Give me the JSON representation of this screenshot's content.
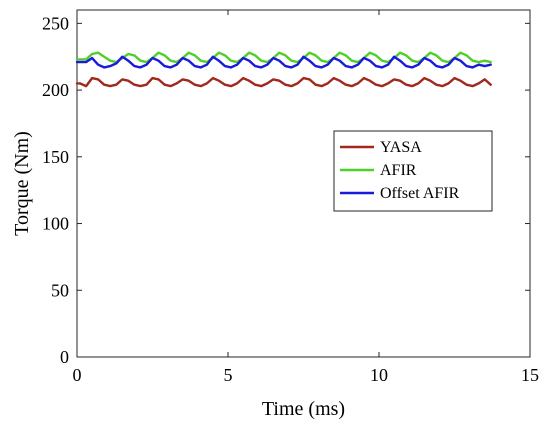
{
  "chart_data": {
    "type": "line",
    "title": "",
    "xlabel": "Time (ms)",
    "ylabel": "Torque (Nm)",
    "xlim": [
      0,
      15
    ],
    "ylim": [
      0,
      260
    ],
    "xticks": [
      0,
      5,
      10,
      15
    ],
    "yticks": [
      0,
      50,
      100,
      150,
      200,
      250
    ],
    "grid": false,
    "legend_position": "right-middle",
    "series": [
      {
        "name": "YASA",
        "color": "#a0281c",
        "x": [
          0.0,
          0.1,
          0.3,
          0.5,
          0.7,
          0.9,
          1.1,
          1.3,
          1.5,
          1.7,
          1.9,
          2.1,
          2.3,
          2.5,
          2.7,
          2.9,
          3.1,
          3.3,
          3.5,
          3.7,
          3.9,
          4.1,
          4.3,
          4.5,
          4.7,
          4.9,
          5.1,
          5.3,
          5.5,
          5.7,
          5.9,
          6.1,
          6.3,
          6.5,
          6.7,
          6.9,
          7.1,
          7.3,
          7.5,
          7.7,
          7.9,
          8.1,
          8.3,
          8.5,
          8.7,
          8.9,
          9.1,
          9.3,
          9.5,
          9.7,
          9.9,
          10.1,
          10.3,
          10.5,
          10.7,
          10.9,
          11.1,
          11.3,
          11.5,
          11.7,
          11.9,
          12.1,
          12.3,
          12.5,
          12.7,
          12.9,
          13.1,
          13.3,
          13.5,
          13.7
        ],
        "y": [
          205,
          205,
          203,
          209,
          208,
          204,
          203,
          204,
          208,
          207,
          204,
          203,
          204,
          209,
          208,
          204,
          203,
          205,
          208,
          207,
          204,
          203,
          205,
          209,
          207,
          204,
          203,
          205,
          209,
          207,
          204,
          203,
          205,
          208,
          207,
          204,
          203,
          205,
          209,
          208,
          204,
          203,
          205,
          209,
          207,
          204,
          203,
          205,
          209,
          207,
          204,
          203,
          205,
          208,
          207,
          204,
          203,
          205,
          209,
          207,
          204,
          203,
          205,
          209,
          207,
          204,
          203,
          205,
          208,
          204
        ]
      },
      {
        "name": "AFIR",
        "color": "#4fcf2a",
        "x": [
          0.0,
          0.1,
          0.3,
          0.5,
          0.7,
          0.9,
          1.1,
          1.3,
          1.5,
          1.7,
          1.9,
          2.1,
          2.3,
          2.5,
          2.7,
          2.9,
          3.1,
          3.3,
          3.5,
          3.7,
          3.9,
          4.1,
          4.3,
          4.5,
          4.7,
          4.9,
          5.1,
          5.3,
          5.5,
          5.7,
          5.9,
          6.1,
          6.3,
          6.5,
          6.7,
          6.9,
          7.1,
          7.3,
          7.5,
          7.7,
          7.9,
          8.1,
          8.3,
          8.5,
          8.7,
          8.9,
          9.1,
          9.3,
          9.5,
          9.7,
          9.9,
          10.1,
          10.3,
          10.5,
          10.7,
          10.9,
          11.1,
          11.3,
          11.5,
          11.7,
          11.9,
          12.1,
          12.3,
          12.5,
          12.7,
          12.9,
          13.1,
          13.3,
          13.5,
          13.7
        ],
        "y": [
          223,
          223,
          223,
          227,
          228,
          225,
          222,
          221,
          224,
          227,
          226,
          222,
          221,
          224,
          228,
          226,
          222,
          221,
          224,
          228,
          226,
          222,
          221,
          224,
          228,
          226,
          222,
          221,
          224,
          228,
          226,
          222,
          221,
          224,
          228,
          226,
          222,
          221,
          224,
          228,
          226,
          222,
          221,
          224,
          228,
          226,
          222,
          221,
          224,
          228,
          226,
          222,
          221,
          224,
          228,
          226,
          222,
          221,
          224,
          228,
          226,
          222,
          221,
          224,
          228,
          226,
          222,
          221,
          222,
          221
        ]
      },
      {
        "name": "Offset AFIR",
        "color": "#1a1adc",
        "x": [
          0.0,
          0.1,
          0.3,
          0.5,
          0.7,
          0.9,
          1.1,
          1.3,
          1.5,
          1.7,
          1.9,
          2.1,
          2.3,
          2.5,
          2.7,
          2.9,
          3.1,
          3.3,
          3.5,
          3.7,
          3.9,
          4.1,
          4.3,
          4.5,
          4.7,
          4.9,
          5.1,
          5.3,
          5.5,
          5.7,
          5.9,
          6.1,
          6.3,
          6.5,
          6.7,
          6.9,
          7.1,
          7.3,
          7.5,
          7.7,
          7.9,
          8.1,
          8.3,
          8.5,
          8.7,
          8.9,
          9.1,
          9.3,
          9.5,
          9.7,
          9.9,
          10.1,
          10.3,
          10.5,
          10.7,
          10.9,
          11.1,
          11.3,
          11.5,
          11.7,
          11.9,
          12.1,
          12.3,
          12.5,
          12.7,
          12.9,
          13.1,
          13.3,
          13.5,
          13.7
        ],
        "y": [
          221,
          221,
          221,
          224,
          219,
          217,
          218,
          220,
          225,
          222,
          218,
          217,
          219,
          224,
          222,
          218,
          217,
          219,
          224,
          222,
          218,
          217,
          219,
          225,
          222,
          218,
          217,
          219,
          224,
          222,
          218,
          217,
          219,
          224,
          222,
          218,
          217,
          219,
          225,
          222,
          218,
          217,
          219,
          224,
          222,
          218,
          217,
          219,
          224,
          222,
          218,
          217,
          219,
          225,
          222,
          218,
          217,
          219,
          224,
          222,
          218,
          217,
          219,
          224,
          222,
          218,
          217,
          219,
          218,
          219
        ]
      }
    ]
  }
}
